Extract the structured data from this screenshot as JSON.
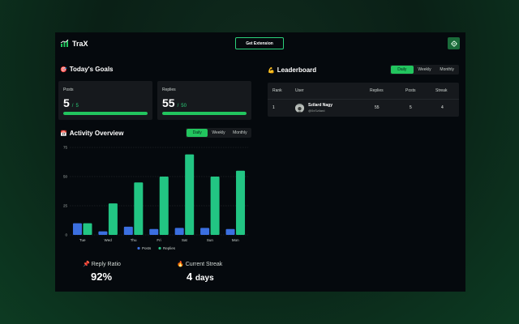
{
  "app": {
    "name": "TraX",
    "extension_button": "Get Extension",
    "accent": "#22c55e"
  },
  "goals": {
    "title": "Today's Goals",
    "title_emoji": "🎯",
    "cards": [
      {
        "label": "Posts",
        "current": "5",
        "target": "5",
        "progress": 1.0
      },
      {
        "label": "Replies",
        "current": "55",
        "target": "50",
        "progress": 1.0
      }
    ]
  },
  "activity": {
    "title": "Activity Overview",
    "title_emoji": "📅",
    "tabs": [
      "Daily",
      "Weekly",
      "Monthly"
    ],
    "active_tab": "Daily"
  },
  "chart_data": {
    "type": "bar",
    "categories": [
      "Tue",
      "Wed",
      "Thu",
      "Fri",
      "Sat",
      "Sun",
      "Mon"
    ],
    "series": [
      {
        "name": "Posts",
        "values": [
          10,
          3,
          7,
          5,
          6,
          6,
          5
        ],
        "color": "#3b6fe0"
      },
      {
        "name": "Replies",
        "values": [
          10,
          27,
          45,
          50,
          69,
          50,
          55
        ],
        "color": "#22c583"
      }
    ],
    "y_ticks": [
      "0",
      "25",
      "50",
      "75"
    ],
    "ylim": [
      0,
      75
    ],
    "grid": true,
    "legend": "bottom"
  },
  "stats": {
    "reply_ratio_label": "Reply Ratio",
    "reply_ratio_emoji": "📌",
    "reply_ratio_value": "92%",
    "streak_label": "Current Streak",
    "streak_emoji": "🔥",
    "streak_value": "4",
    "streak_unit": "days"
  },
  "leaderboard": {
    "title": "Leaderboard",
    "title_emoji": "💪",
    "tabs": [
      "Daily",
      "Weekly",
      "Monthly"
    ],
    "active_tab": "Daily",
    "columns": [
      "Rank",
      "User",
      "Replies",
      "Posts",
      "Streak"
    ],
    "rows": [
      {
        "rank": "1",
        "name": "Szilard Nagy",
        "handle": "@0xSzilard",
        "replies": "55",
        "posts": "5",
        "streak": "4"
      }
    ]
  }
}
